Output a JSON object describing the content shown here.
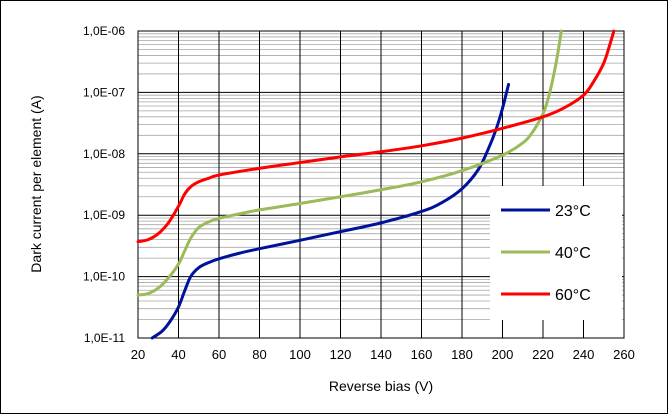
{
  "chart_data": {
    "type": "line",
    "xlabel": "Reverse bias (V)",
    "ylabel": "Dark current per element (A)",
    "xlim": [
      20,
      260
    ],
    "ylim": [
      1e-11,
      1e-06
    ],
    "yscale": "log",
    "grid": "major and minor",
    "legend_position": "bottom-right inside plot",
    "x_ticks": [
      "20",
      "40",
      "60",
      "80",
      "100",
      "120",
      "140",
      "160",
      "180",
      "200",
      "220",
      "240",
      "260"
    ],
    "y_ticks": [
      "1,0E-11",
      "1,0E-10",
      "1,0E-09",
      "1,0E-08",
      "1,0E-07",
      "1,0E-06"
    ],
    "series": [
      {
        "name": "23°C",
        "color": "#00129a",
        "points": [
          [
            27,
            1e-11
          ],
          [
            32,
            1.3e-11
          ],
          [
            36,
            1.9e-11
          ],
          [
            40,
            3.2e-11
          ],
          [
            43,
            5.8e-11
          ],
          [
            46,
            1e-10
          ],
          [
            50,
            1.4e-10
          ],
          [
            55,
            1.7e-10
          ],
          [
            60,
            1.95e-10
          ],
          [
            70,
            2.4e-10
          ],
          [
            80,
            2.85e-10
          ],
          [
            100,
            3.9e-10
          ],
          [
            120,
            5.4e-10
          ],
          [
            140,
            7.5e-10
          ],
          [
            160,
            1.15e-09
          ],
          [
            170,
            1.6e-09
          ],
          [
            180,
            2.7e-09
          ],
          [
            188,
            5.5e-09
          ],
          [
            193,
            1.2e-08
          ],
          [
            197,
            2.6e-08
          ],
          [
            200,
            5.5e-08
          ],
          [
            202,
            1e-07
          ],
          [
            203,
            1.35e-07
          ]
        ]
      },
      {
        "name": "40°C",
        "color": "#9bbb59",
        "points": [
          [
            20,
            5e-11
          ],
          [
            25,
            5.3e-11
          ],
          [
            30,
            6.5e-11
          ],
          [
            35,
            9.5e-11
          ],
          [
            40,
            1.6e-10
          ],
          [
            43,
            2.6e-10
          ],
          [
            46,
            4.2e-10
          ],
          [
            50,
            6.3e-10
          ],
          [
            55,
            7.8e-10
          ],
          [
            60,
            8.9e-10
          ],
          [
            70,
            1.05e-09
          ],
          [
            80,
            1.22e-09
          ],
          [
            100,
            1.55e-09
          ],
          [
            120,
            2e-09
          ],
          [
            140,
            2.6e-09
          ],
          [
            160,
            3.5e-09
          ],
          [
            180,
            5.3e-09
          ],
          [
            200,
            9.5e-09
          ],
          [
            210,
            1.5e-08
          ],
          [
            215,
            2.3e-08
          ],
          [
            220,
            4.5e-08
          ],
          [
            223,
            9e-08
          ],
          [
            226,
            2.5e-07
          ],
          [
            228,
            6e-07
          ],
          [
            229,
            1e-06
          ]
        ]
      },
      {
        "name": "60°C",
        "color": "#ff0000",
        "points": [
          [
            20,
            3.7e-10
          ],
          [
            25,
            4e-10
          ],
          [
            30,
            5e-10
          ],
          [
            35,
            7.5e-10
          ],
          [
            40,
            1.4e-09
          ],
          [
            43,
            2.2e-09
          ],
          [
            46,
            2.9e-09
          ],
          [
            50,
            3.5e-09
          ],
          [
            55,
            4e-09
          ],
          [
            60,
            4.5e-09
          ],
          [
            80,
            5.8e-09
          ],
          [
            100,
            7.2e-09
          ],
          [
            120,
            8.9e-09
          ],
          [
            140,
            1.08e-08
          ],
          [
            160,
            1.35e-08
          ],
          [
            180,
            1.8e-08
          ],
          [
            200,
            2.6e-08
          ],
          [
            220,
            4e-08
          ],
          [
            230,
            5.5e-08
          ],
          [
            240,
            9e-08
          ],
          [
            245,
            1.5e-07
          ],
          [
            250,
            3e-07
          ],
          [
            253,
            6e-07
          ],
          [
            255,
            1e-06
          ]
        ]
      }
    ]
  }
}
